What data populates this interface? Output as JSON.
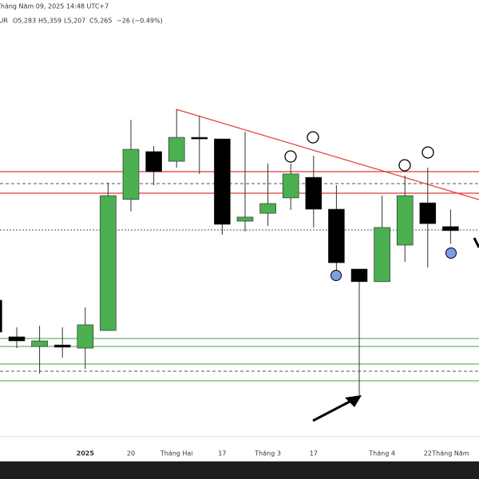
{
  "header": {
    "datetime": "Tháng Năm 09, 2025 14:48 UTC+7",
    "symbol": "ZEUR",
    "open": "O5,283",
    "high": "H5,359",
    "low": "L5,207",
    "close": "C5,265",
    "change": "−26 (−0.49%)"
  },
  "chart_data": {
    "type": "candlestick",
    "categories": [
      null,
      null,
      null,
      null,
      "2025",
      null,
      "20",
      null,
      "Tháng Hai",
      null,
      "17",
      null,
      "Tháng 3",
      null,
      "17",
      null,
      null,
      "Tháng 4",
      null,
      "22",
      "Tháng Năm"
    ],
    "open": [
      4.957,
      4.795,
      4.752,
      4.759,
      4.745,
      4.823,
      5.403,
      5.615,
      5.572,
      5.678,
      5.671,
      5.307,
      5.342,
      5.41,
      5.501,
      5.36,
      5.095,
      5.039,
      5.201,
      5.388,
      5.283
    ],
    "high": [
      4.957,
      4.837,
      4.844,
      4.837,
      4.925,
      5.477,
      5.756,
      5.639,
      5.802,
      5.774,
      5.671,
      5.703,
      5.562,
      5.562,
      5.597,
      5.466,
      5.095,
      5.42,
      5.509,
      5.544,
      5.359
    ],
    "low": [
      4.816,
      4.745,
      4.632,
      4.703,
      4.653,
      4.823,
      5.35,
      5.466,
      5.544,
      5.516,
      5.247,
      5.261,
      5.286,
      5.357,
      5.279,
      5.084,
      4.53,
      5.039,
      5.127,
      5.102,
      5.207
    ],
    "close": [
      4.816,
      4.777,
      4.777,
      4.749,
      4.848,
      5.42,
      5.625,
      5.526,
      5.678,
      5.675,
      5.293,
      5.325,
      5.385,
      5.516,
      5.36,
      5.123,
      5.039,
      5.279,
      5.42,
      5.296,
      5.265
    ],
    "ylim": [
      4.36,
      6.18
    ],
    "up_color": "#4caf50",
    "down_color": "#000000"
  }
}
